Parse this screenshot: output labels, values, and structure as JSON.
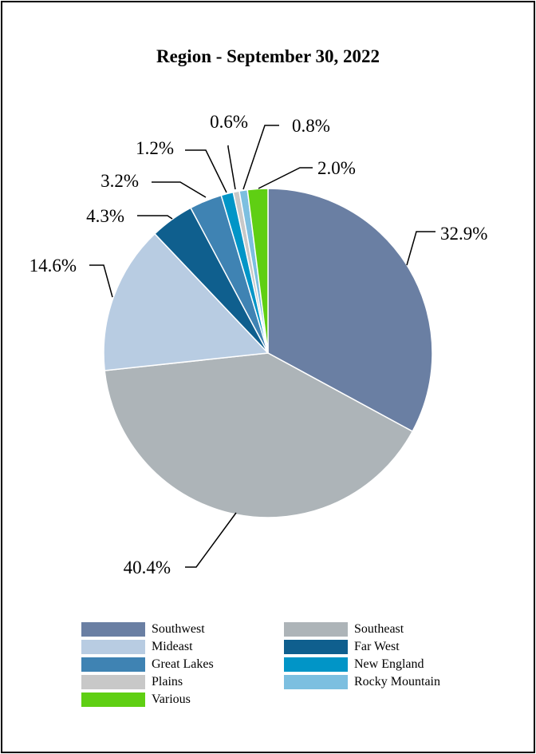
{
  "chart_data": {
    "type": "pie",
    "title": "Region - September 30, 2022",
    "slices": [
      {
        "label": "Southwest",
        "value": 32.9,
        "display": "32.9%",
        "color": "#6a7fa3"
      },
      {
        "label": "Southeast",
        "value": 40.4,
        "display": "40.4%",
        "color": "#adb4b8"
      },
      {
        "label": "Mideast",
        "value": 14.6,
        "display": "14.6%",
        "color": "#b8cce2"
      },
      {
        "label": "Far West",
        "value": 4.3,
        "display": "4.3%",
        "color": "#0f5f8e"
      },
      {
        "label": "Great Lakes",
        "value": 3.2,
        "display": "3.2%",
        "color": "#3f83b3"
      },
      {
        "label": "New England",
        "value": 1.2,
        "display": "1.2%",
        "color": "#0195c7"
      },
      {
        "label": "Plains",
        "value": 0.6,
        "display": "0.6%",
        "color": "#c8c8c8"
      },
      {
        "label": "Rocky Mountain",
        "value": 0.8,
        "display": "0.8%",
        "color": "#7cbfe0"
      },
      {
        "label": "Various",
        "value": 2.0,
        "display": "2.0%",
        "color": "#5fcf13"
      }
    ],
    "legend_position": "bottom"
  }
}
